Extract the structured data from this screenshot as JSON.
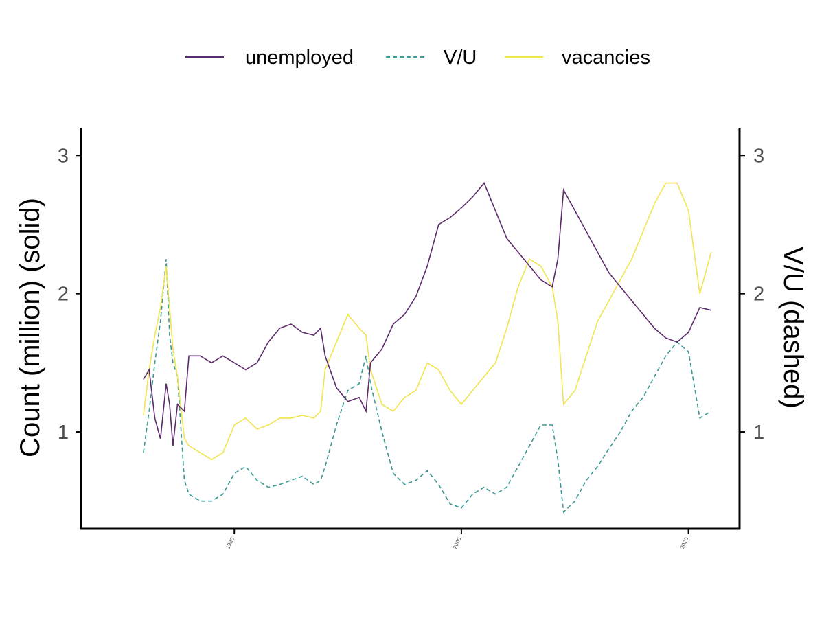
{
  "legend": {
    "items": [
      {
        "label": "unemployed",
        "color": "#5B2A6B",
        "dash": "solid"
      },
      {
        "label": "V/U",
        "color": "#3A9A96",
        "dash": "dashed"
      },
      {
        "label": "vacancies",
        "color": "#F2E44C",
        "dash": "solid"
      }
    ]
  },
  "chart_data": {
    "type": "line",
    "ylabel_left": "Count (million) (solid)",
    "ylabel_right": "V/U (dashed)",
    "xlabel": "",
    "xticks": [
      "1980",
      "2000",
      "2020"
    ],
    "yticks_left": [
      "1",
      "2",
      "3"
    ],
    "yticks_right": [
      "1",
      "2",
      "3"
    ],
    "xlim": [
      1966.5,
      2024.5
    ],
    "ylim": [
      0.3,
      3.2
    ],
    "grid": false,
    "legend_position": "top",
    "series": [
      {
        "name": "unemployed",
        "color": "#5B2A6B",
        "x": [
          1972.0,
          1972.5,
          1973.0,
          1973.5,
          1974.0,
          1974.3,
          1974.6,
          1975.0,
          1975.6,
          1976.0,
          1977.0,
          1978.0,
          1979.0,
          1980.0,
          1981.0,
          1982.0,
          1983.0,
          1984.0,
          1985.0,
          1986.0,
          1987.0,
          1987.6,
          1988.0,
          1989.0,
          1990.0,
          1991.0,
          1991.6,
          1992.0,
          1993.0,
          1994.0,
          1995.0,
          1996.0,
          1997.0,
          1998.0,
          1999.0,
          2000.0,
          2001.0,
          2002.0,
          2003.0,
          2004.0,
          2005.0,
          2006.0,
          2007.0,
          2008.0,
          2008.5,
          2009.0,
          2010.0,
          2011.0,
          2012.0,
          2013.0,
          2014.0,
          2015.0,
          2016.0,
          2017.0,
          2018.0,
          2019.0,
          2020.0,
          2021.0,
          2022.0
        ],
        "y": [
          1.38,
          1.45,
          1.1,
          0.95,
          1.35,
          1.2,
          0.9,
          1.2,
          1.15,
          1.55,
          1.55,
          1.5,
          1.55,
          1.5,
          1.45,
          1.5,
          1.65,
          1.75,
          1.78,
          1.72,
          1.7,
          1.75,
          1.55,
          1.32,
          1.22,
          1.25,
          1.15,
          1.5,
          1.6,
          1.78,
          1.85,
          1.98,
          2.2,
          2.5,
          2.55,
          2.62,
          2.7,
          2.8,
          2.6,
          2.4,
          2.3,
          2.2,
          2.1,
          2.05,
          2.25,
          2.75,
          2.6,
          2.45,
          2.3,
          2.15,
          2.05,
          1.95,
          1.85,
          1.75,
          1.68,
          1.65,
          1.72,
          1.9,
          1.88
        ]
      },
      {
        "name": "V/U",
        "color": "#3A9A96",
        "x": [
          1972.0,
          1972.5,
          1973.0,
          1973.5,
          1974.0,
          1974.3,
          1974.6,
          1975.0,
          1975.6,
          1976.0,
          1977.0,
          1978.0,
          1979.0,
          1980.0,
          1981.0,
          1982.0,
          1983.0,
          1984.0,
          1985.0,
          1986.0,
          1987.0,
          1987.6,
          1988.0,
          1989.0,
          1990.0,
          1991.0,
          1991.6,
          1992.0,
          1993.0,
          1994.0,
          1995.0,
          1996.0,
          1997.0,
          1998.0,
          1999.0,
          2000.0,
          2001.0,
          2002.0,
          2003.0,
          2004.0,
          2005.0,
          2006.0,
          2007.0,
          2008.0,
          2008.5,
          2009.0,
          2010.0,
          2011.0,
          2012.0,
          2013.0,
          2014.0,
          2015.0,
          2016.0,
          2017.0,
          2018.0,
          2019.0,
          2020.0,
          2021.0,
          2022.0
        ],
        "y": [
          0.85,
          1.15,
          1.5,
          1.8,
          2.25,
          1.7,
          1.5,
          1.4,
          0.65,
          0.55,
          0.5,
          0.5,
          0.55,
          0.7,
          0.75,
          0.65,
          0.6,
          0.62,
          0.65,
          0.68,
          0.62,
          0.65,
          0.75,
          1.05,
          1.3,
          1.35,
          1.55,
          1.35,
          1.0,
          0.7,
          0.62,
          0.65,
          0.72,
          0.62,
          0.48,
          0.45,
          0.55,
          0.6,
          0.55,
          0.6,
          0.75,
          0.9,
          1.05,
          1.05,
          0.8,
          0.42,
          0.5,
          0.65,
          0.75,
          0.88,
          1.0,
          1.15,
          1.25,
          1.4,
          1.55,
          1.65,
          1.58,
          1.1,
          1.15
        ]
      },
      {
        "name": "vacancies",
        "color": "#F2E44C",
        "x": [
          1972.0,
          1972.5,
          1973.0,
          1973.5,
          1974.0,
          1974.3,
          1974.6,
          1975.0,
          1975.6,
          1976.0,
          1977.0,
          1978.0,
          1979.0,
          1980.0,
          1981.0,
          1982.0,
          1983.0,
          1984.0,
          1985.0,
          1986.0,
          1987.0,
          1987.6,
          1988.0,
          1989.0,
          1990.0,
          1991.0,
          1991.6,
          1992.0,
          1993.0,
          1994.0,
          1995.0,
          1996.0,
          1997.0,
          1998.0,
          1999.0,
          2000.0,
          2001.0,
          2002.0,
          2003.0,
          2004.0,
          2005.0,
          2006.0,
          2007.0,
          2008.0,
          2008.5,
          2009.0,
          2010.0,
          2011.0,
          2012.0,
          2013.0,
          2014.0,
          2015.0,
          2016.0,
          2017.0,
          2018.0,
          2019.0,
          2020.0,
          2021.0,
          2022.0
        ],
        "y": [
          1.12,
          1.45,
          1.7,
          1.9,
          2.2,
          1.9,
          1.6,
          1.4,
          0.95,
          0.9,
          0.85,
          0.8,
          0.85,
          1.05,
          1.1,
          1.02,
          1.05,
          1.1,
          1.1,
          1.12,
          1.1,
          1.15,
          1.45,
          1.65,
          1.85,
          1.75,
          1.7,
          1.45,
          1.2,
          1.15,
          1.25,
          1.3,
          1.5,
          1.45,
          1.3,
          1.2,
          1.3,
          1.4,
          1.5,
          1.75,
          2.05,
          2.25,
          2.2,
          2.05,
          1.8,
          1.2,
          1.3,
          1.55,
          1.8,
          1.95,
          2.1,
          2.25,
          2.45,
          2.65,
          2.8,
          2.8,
          2.6,
          2.0,
          2.3
        ]
      }
    ]
  }
}
